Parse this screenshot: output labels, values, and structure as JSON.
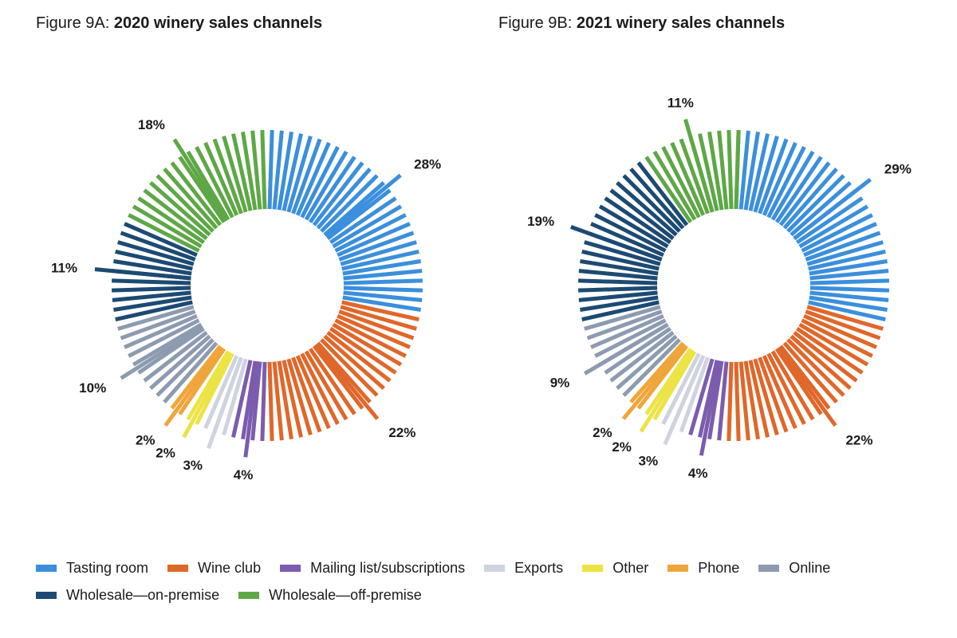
{
  "figures": [
    {
      "lead": "Figure 9A: ",
      "title": "2020 winery sales channels"
    },
    {
      "lead": "Figure 9B: ",
      "title": "2021 winery sales channels"
    }
  ],
  "chart_data": [
    {
      "type": "pie",
      "title": "Figure 9A: 2020 winery sales channels",
      "labels": [
        "Tasting room",
        "Wine club",
        "Mailing list/subscriptions",
        "Exports",
        "Other",
        "Phone",
        "Online",
        "Wholesale—on-premise",
        "Wholesale—off-premise"
      ],
      "values": [
        28,
        22,
        4,
        3,
        2,
        2,
        10,
        11,
        18
      ],
      "value_labels": [
        "28%",
        "22%",
        "4%",
        "3%",
        "2%",
        "2%",
        "10%",
        "11%",
        "18%"
      ]
    },
    {
      "type": "pie",
      "title": "Figure 9B: 2021 winery sales channels",
      "labels": [
        "Tasting room",
        "Wine club",
        "Mailing list/subscriptions",
        "Exports",
        "Other",
        "Phone",
        "Online",
        "Wholesale—on-premise",
        "Wholesale—off-premise"
      ],
      "values": [
        29,
        22,
        4,
        3,
        2,
        2,
        9,
        19,
        11
      ],
      "value_labels": [
        "29%",
        "22%",
        "4%",
        "3%",
        "2%",
        "2%",
        "9%",
        "19%",
        "11%"
      ]
    }
  ],
  "legend": [
    {
      "label": "Tasting room",
      "color": "#3b8fdc"
    },
    {
      "label": "Wine club",
      "color": "#e0672a"
    },
    {
      "label": "Mailing list/subscriptions",
      "color": "#7b5cae"
    },
    {
      "label": "Exports",
      "color": "#cfd3df"
    },
    {
      "label": "Other",
      "color": "#ece345"
    },
    {
      "label": "Phone",
      "color": "#f0a53a"
    },
    {
      "label": "Online",
      "color": "#8d9bb0"
    },
    {
      "label": "Wholesale—on-premise",
      "color": "#1c4a73"
    },
    {
      "label": "Wholesale—off-premise",
      "color": "#5ea746"
    }
  ]
}
